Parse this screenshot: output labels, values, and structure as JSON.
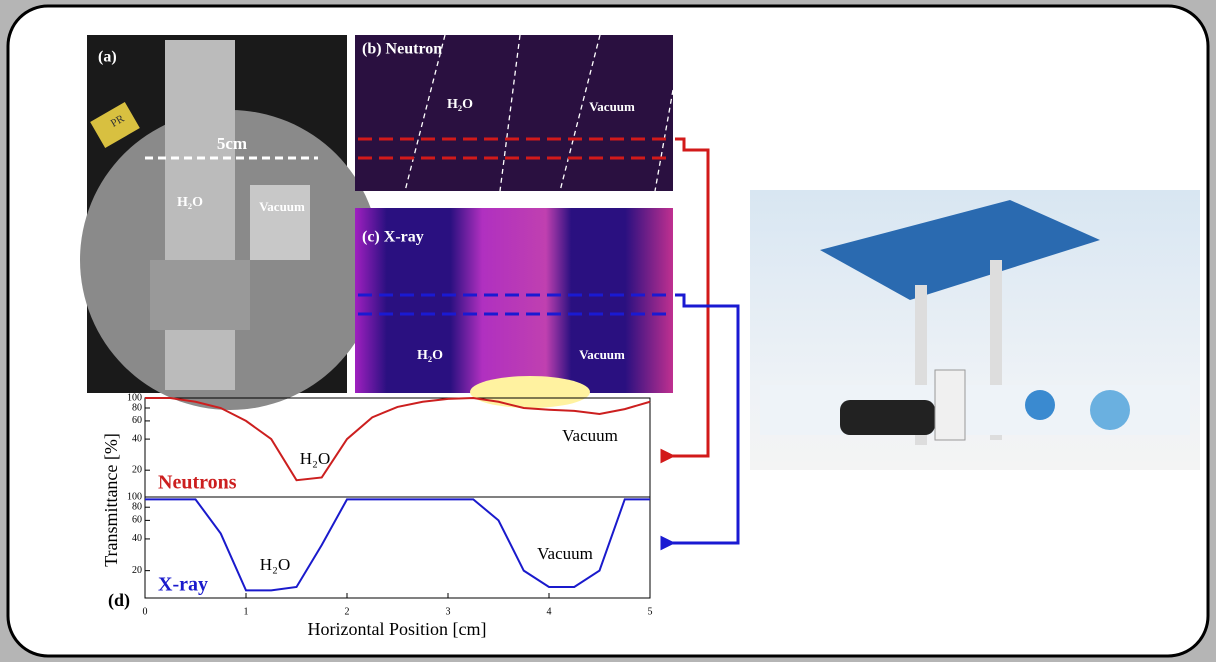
{
  "figure": {
    "ylabel": "Transmittance [%]",
    "xlabel": "Horizontal Position [cm]",
    "panel": "(d)"
  },
  "panels": {
    "a": {
      "label": "(a)",
      "scale": "5cm",
      "water": "H₂O",
      "vacuum": "Vacuum",
      "tag": "PR"
    },
    "b": {
      "label": "(b) Neutron",
      "water": "H₂O",
      "vacuum": "Vacuum"
    },
    "c": {
      "label": "(c) X-ray",
      "water": "H₂O",
      "vacuum": "Vacuum"
    }
  },
  "chart_data": [
    {
      "type": "line",
      "log_y": true,
      "x": [
        0,
        0.25,
        0.5,
        0.75,
        1,
        1.25,
        1.5,
        1.75,
        2,
        2.25,
        2.5,
        2.75,
        3,
        3.25,
        3.5,
        3.75,
        4,
        4.25,
        4.5,
        4.75,
        5
      ],
      "series": [
        {
          "name": "Neutrons",
          "color": "#cc1f1f",
          "values": [
            100,
            100,
            92,
            80,
            60,
            40,
            16,
            17,
            40,
            65,
            82,
            92,
            98,
            100,
            92,
            80,
            77,
            75,
            70,
            78,
            92
          ]
        }
      ],
      "annotations": [
        "H₂O",
        "Vacuum"
      ],
      "xlim": [
        0,
        5
      ],
      "ylim": [
        11,
        100
      ],
      "yticks": [
        20,
        40,
        60,
        80,
        100
      ]
    },
    {
      "type": "line",
      "log_y": true,
      "x": [
        0,
        0.25,
        0.5,
        0.75,
        1,
        1.25,
        1.5,
        1.75,
        2,
        2.25,
        2.5,
        2.75,
        3,
        3.25,
        3.5,
        3.75,
        4,
        4.25,
        4.5,
        4.75,
        5
      ],
      "series": [
        {
          "name": "X-ray",
          "color": "#1a1acc",
          "values": [
            95,
            95,
            95,
            45,
            13,
            13,
            14,
            35,
            95,
            95,
            95,
            95,
            95,
            95,
            60,
            20,
            14,
            14,
            20,
            95,
            95
          ]
        }
      ],
      "annotations": [
        "H₂O",
        "Vacuum"
      ],
      "xlim": [
        0,
        5
      ],
      "ylim": [
        11,
        100
      ],
      "yticks": [
        20,
        40,
        60,
        80,
        100
      ],
      "xticks": [
        0,
        1,
        2,
        3,
        4,
        5
      ]
    }
  ]
}
